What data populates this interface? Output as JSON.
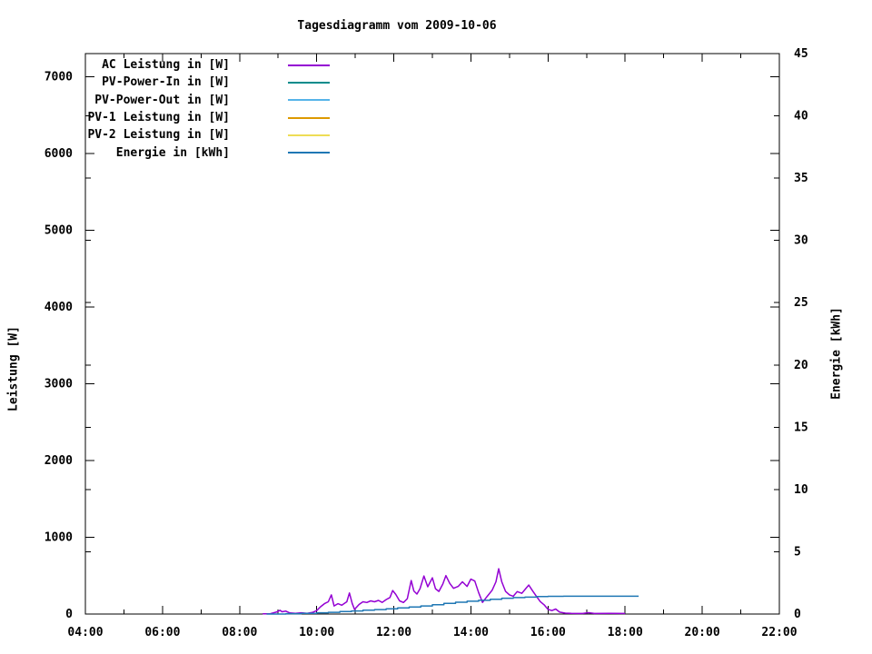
{
  "chart_data": {
    "type": "line",
    "title": "Tagesdiagramm vom 2009-10-06",
    "xlabel": "",
    "ylabel": "Leistung [W]",
    "y2label": "Energie [kWh]",
    "grid": false,
    "legend_position": "top-left-inside",
    "x_axis": {
      "min_hour": 4,
      "max_hour": 22,
      "major_tick_every_hours": 2,
      "minor_tick_every_hours": 1,
      "tick_labels": [
        "04:00",
        "06:00",
        "08:00",
        "10:00",
        "12:00",
        "14:00",
        "16:00",
        "18:00",
        "20:00",
        "22:00"
      ]
    },
    "y_axis": {
      "label": "Leistung [W]",
      "min": 0,
      "max": 7300,
      "tick_step": 1000,
      "tick_labels": [
        "0",
        "1000",
        "2000",
        "3000",
        "4000",
        "5000",
        "6000",
        "7000"
      ]
    },
    "y2_axis": {
      "label": "Energie [kWh]",
      "min": 0,
      "max": 45,
      "tick_step": 5,
      "tick_labels": [
        "0",
        "5",
        "10",
        "15",
        "20",
        "25",
        "30",
        "35",
        "40",
        "45"
      ]
    },
    "series": [
      {
        "name": "AC Leistung in [W]",
        "color": "#9400d3",
        "axis": "y1",
        "style": "line",
        "points": [
          [
            8.6,
            2
          ],
          [
            8.8,
            5
          ],
          [
            8.95,
            25
          ],
          [
            9.05,
            48
          ],
          [
            9.1,
            30
          ],
          [
            9.2,
            38
          ],
          [
            9.3,
            14
          ],
          [
            9.45,
            10
          ],
          [
            9.6,
            16
          ],
          [
            9.75,
            10
          ],
          [
            9.9,
            22
          ],
          [
            10.0,
            45
          ],
          [
            10.1,
            95
          ],
          [
            10.2,
            135
          ],
          [
            10.3,
            160
          ],
          [
            10.38,
            250
          ],
          [
            10.45,
            105
          ],
          [
            10.55,
            135
          ],
          [
            10.65,
            115
          ],
          [
            10.78,
            160
          ],
          [
            10.85,
            275
          ],
          [
            10.92,
            140
          ],
          [
            10.98,
            60
          ],
          [
            11.1,
            125
          ],
          [
            11.2,
            160
          ],
          [
            11.3,
            150
          ],
          [
            11.4,
            172
          ],
          [
            11.5,
            160
          ],
          [
            11.6,
            178
          ],
          [
            11.7,
            152
          ],
          [
            11.8,
            188
          ],
          [
            11.9,
            215
          ],
          [
            11.97,
            307
          ],
          [
            12.05,
            255
          ],
          [
            12.15,
            172
          ],
          [
            12.25,
            150
          ],
          [
            12.35,
            200
          ],
          [
            12.45,
            437
          ],
          [
            12.52,
            300
          ],
          [
            12.6,
            260
          ],
          [
            12.68,
            330
          ],
          [
            12.78,
            496
          ],
          [
            12.88,
            355
          ],
          [
            13.0,
            472
          ],
          [
            13.08,
            330
          ],
          [
            13.17,
            295
          ],
          [
            13.27,
            390
          ],
          [
            13.35,
            500
          ],
          [
            13.45,
            400
          ],
          [
            13.55,
            335
          ],
          [
            13.67,
            360
          ],
          [
            13.78,
            420
          ],
          [
            13.9,
            360
          ],
          [
            14.0,
            455
          ],
          [
            14.1,
            430
          ],
          [
            14.2,
            280
          ],
          [
            14.3,
            152
          ],
          [
            14.42,
            230
          ],
          [
            14.55,
            310
          ],
          [
            14.65,
            420
          ],
          [
            14.72,
            590
          ],
          [
            14.8,
            420
          ],
          [
            14.9,
            295
          ],
          [
            15.0,
            250
          ],
          [
            15.1,
            232
          ],
          [
            15.2,
            292
          ],
          [
            15.32,
            270
          ],
          [
            15.42,
            330
          ],
          [
            15.5,
            378
          ],
          [
            15.6,
            300
          ],
          [
            15.7,
            230
          ],
          [
            15.8,
            162
          ],
          [
            15.9,
            120
          ],
          [
            16.0,
            60
          ],
          [
            16.1,
            45
          ],
          [
            16.2,
            65
          ],
          [
            16.3,
            25
          ],
          [
            16.45,
            12
          ],
          [
            16.6,
            8
          ],
          [
            16.9,
            7
          ],
          [
            17.05,
            18
          ],
          [
            17.2,
            7
          ],
          [
            17.6,
            8
          ],
          [
            18.0,
            7
          ]
        ]
      },
      {
        "name": "PV-Power-In in [W]",
        "color": "#008c8c",
        "axis": "y1",
        "style": "line",
        "points": []
      },
      {
        "name": "PV-Power-Out in [W]",
        "color": "#56b4e9",
        "axis": "y1",
        "style": "line",
        "points": []
      },
      {
        "name": "PV-1 Leistung in [W]",
        "color": "#dd9900",
        "axis": "y1",
        "style": "line",
        "points": []
      },
      {
        "name": "PV-2 Leistung in [W]",
        "color": "#eedd55",
        "axis": "y1",
        "style": "line",
        "points": []
      },
      {
        "name": "Energie in [kWh]",
        "color": "#1f77b4",
        "axis": "y2",
        "style": "steps",
        "points": [
          [
            8.7,
            0.0
          ],
          [
            9.2,
            0.03
          ],
          [
            9.6,
            0.06
          ],
          [
            10.0,
            0.1
          ],
          [
            10.3,
            0.14
          ],
          [
            10.6,
            0.2
          ],
          [
            10.9,
            0.25
          ],
          [
            11.2,
            0.31
          ],
          [
            11.5,
            0.36
          ],
          [
            11.8,
            0.42
          ],
          [
            12.1,
            0.49
          ],
          [
            12.4,
            0.56
          ],
          [
            12.7,
            0.65
          ],
          [
            13.0,
            0.75
          ],
          [
            13.3,
            0.85
          ],
          [
            13.6,
            0.95
          ],
          [
            13.9,
            1.03
          ],
          [
            14.2,
            1.1
          ],
          [
            14.5,
            1.18
          ],
          [
            14.8,
            1.27
          ],
          [
            15.1,
            1.32
          ],
          [
            15.4,
            1.36
          ],
          [
            15.7,
            1.4
          ],
          [
            16.0,
            1.42
          ],
          [
            16.4,
            1.43
          ],
          [
            18.35,
            1.43
          ]
        ]
      }
    ]
  }
}
